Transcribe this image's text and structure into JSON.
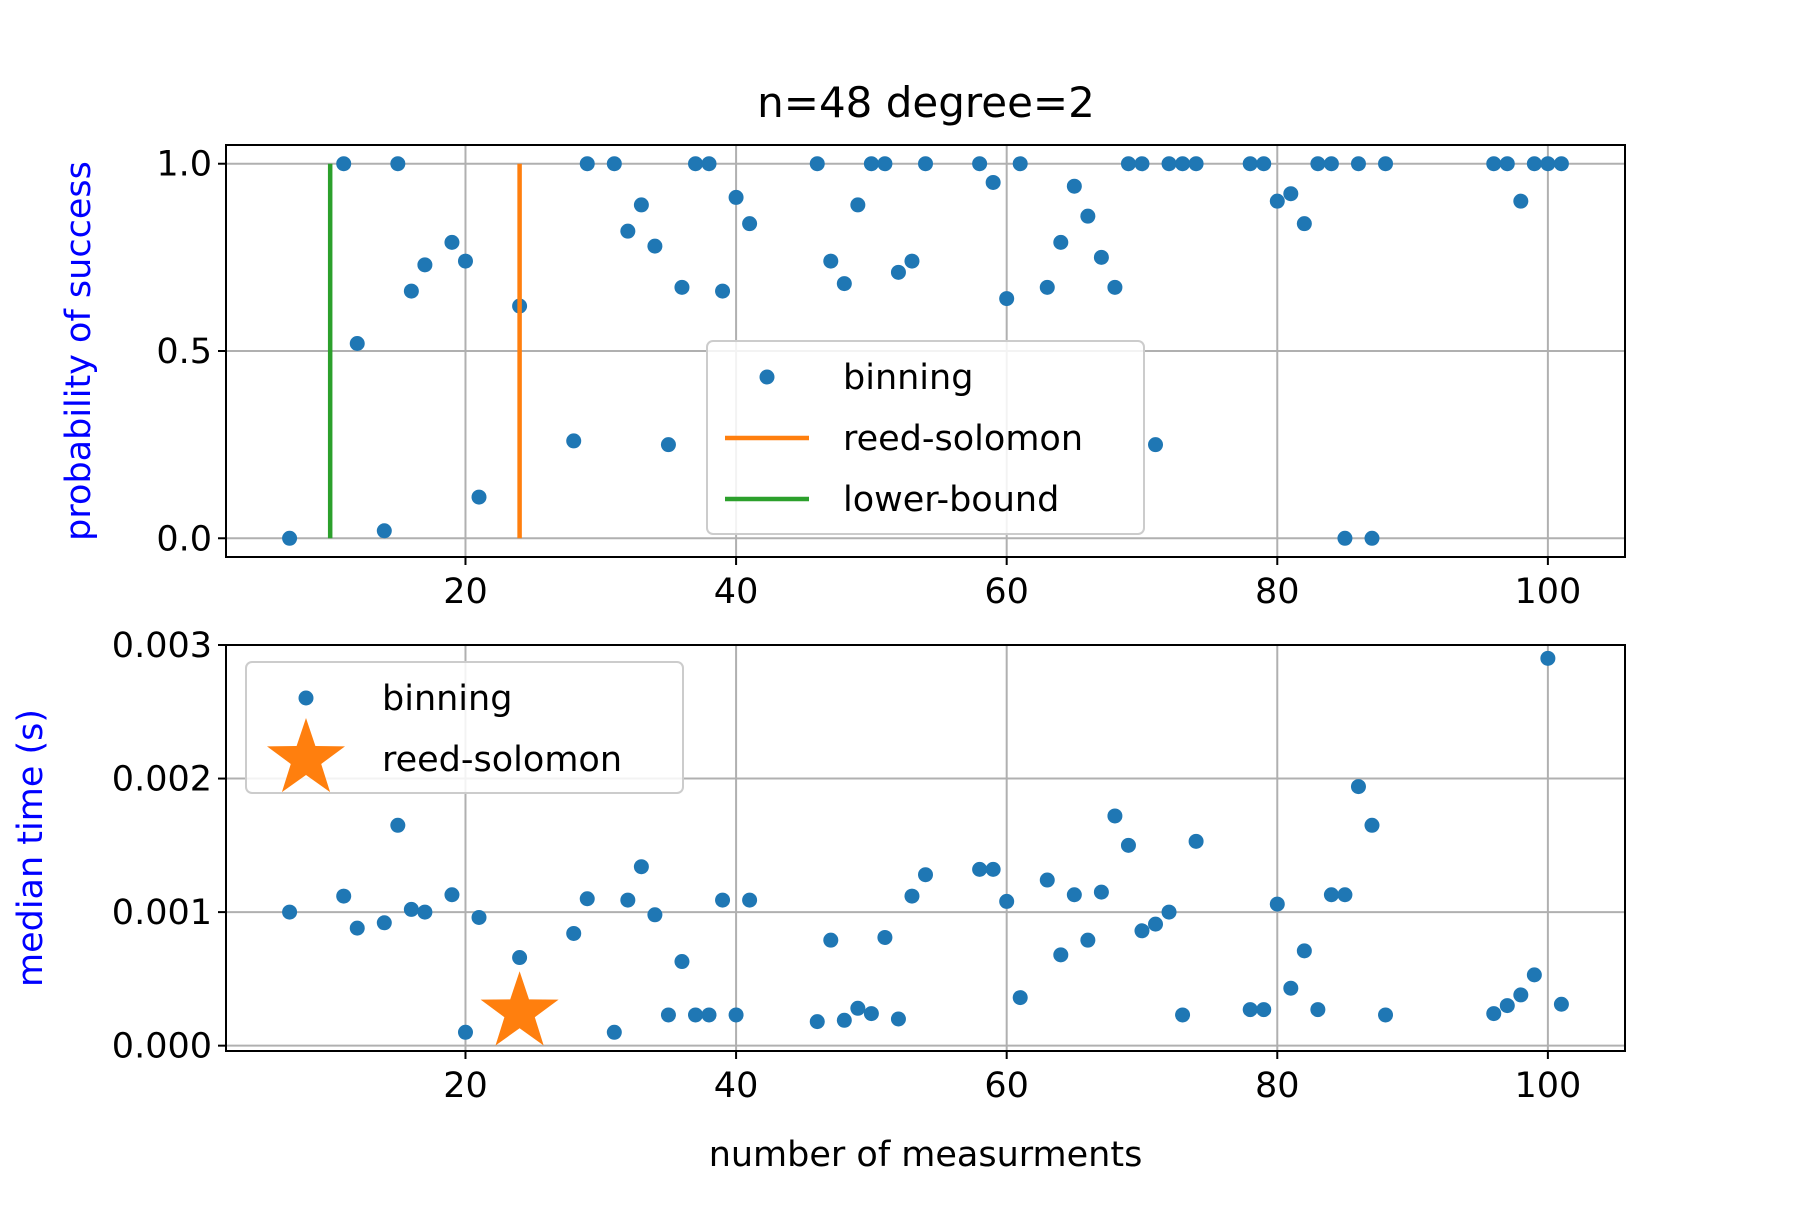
{
  "title": "n=48 degree=2",
  "colors": {
    "binning": "#1f77b4",
    "reed_solomon": "#ff7f0e",
    "lower_bound": "#2ca02c",
    "ylabel": "#0000ff",
    "grid": "#b0b0b0"
  },
  "chart_data": [
    {
      "type": "scatter",
      "title": "n=48 degree=2",
      "xlabel": "",
      "ylabel": "probability of success",
      "xlim": [
        2.3,
        105.7
      ],
      "ylim": [
        -0.05,
        1.05
      ],
      "xticks": [
        20,
        40,
        60,
        80,
        100
      ],
      "yticks": [
        0.0,
        0.5,
        1.0
      ],
      "ytick_labels": [
        "0.0",
        "0.5",
        "1.0"
      ],
      "grid": true,
      "legend_position": "lower-center",
      "series": [
        {
          "name": "binning",
          "kind": "points",
          "x": [
            7,
            11,
            12,
            14,
            15,
            16,
            17,
            19,
            20,
            21,
            24,
            28,
            29,
            31,
            32,
            33,
            34,
            35,
            36,
            37,
            38,
            39,
            40,
            41,
            46,
            47,
            48,
            49,
            50,
            51,
            52,
            53,
            54,
            58,
            59,
            60,
            61,
            63,
            64,
            65,
            66,
            67,
            68,
            69,
            70,
            71,
            72,
            73,
            74,
            78,
            79,
            80,
            81,
            82,
            83,
            84,
            85,
            86,
            87,
            88,
            96,
            97,
            98,
            99,
            100,
            101
          ],
          "y": [
            0.0,
            1.0,
            0.52,
            0.02,
            1.0,
            0.66,
            0.73,
            0.79,
            0.74,
            0.11,
            0.62,
            0.26,
            1.0,
            1.0,
            0.82,
            0.89,
            0.78,
            0.25,
            0.67,
            1.0,
            1.0,
            0.66,
            0.91,
            0.84,
            1.0,
            0.74,
            0.68,
            0.89,
            1.0,
            1.0,
            0.71,
            0.74,
            1.0,
            1.0,
            0.95,
            0.64,
            1.0,
            0.67,
            0.79,
            0.94,
            0.86,
            0.75,
            0.67,
            1.0,
            1.0,
            0.25,
            1.0,
            1.0,
            1.0,
            1.0,
            1.0,
            0.9,
            0.92,
            0.84,
            1.0,
            1.0,
            0.0,
            1.0,
            0.0,
            1.0,
            1.0,
            1.0,
            0.9,
            1.0,
            1.0,
            1.0
          ]
        },
        {
          "name": "reed-solomon",
          "kind": "vline",
          "x": 24,
          "y": [
            0,
            1
          ]
        },
        {
          "name": "lower-bound",
          "kind": "vline",
          "x": 10,
          "y": [
            0,
            1
          ]
        }
      ]
    },
    {
      "type": "scatter",
      "title": "",
      "xlabel": "number of measurments",
      "ylabel": "median time (s)",
      "xlim": [
        2.3,
        105.7
      ],
      "ylim": [
        -4e-05,
        0.003
      ],
      "xticks": [
        20,
        40,
        60,
        80,
        100
      ],
      "yticks": [
        0.0,
        0.001,
        0.002,
        0.003
      ],
      "ytick_labels": [
        "0.000",
        "0.001",
        "0.002",
        "0.003"
      ],
      "grid": true,
      "legend_position": "upper-left",
      "series": [
        {
          "name": "binning",
          "kind": "points",
          "x": [
            7,
            11,
            12,
            14,
            15,
            16,
            17,
            19,
            20,
            21,
            24,
            28,
            29,
            31,
            32,
            33,
            34,
            35,
            36,
            37,
            38,
            39,
            40,
            41,
            46,
            47,
            48,
            49,
            50,
            51,
            52,
            53,
            54,
            58,
            59,
            60,
            61,
            63,
            64,
            65,
            66,
            67,
            68,
            69,
            70,
            71,
            72,
            73,
            74,
            78,
            79,
            80,
            81,
            82,
            83,
            84,
            85,
            86,
            87,
            88,
            96,
            97,
            98,
            99,
            100,
            101
          ],
          "y": [
            0.001,
            0.00112,
            0.00088,
            0.00092,
            0.00165,
            0.00102,
            0.001,
            0.00113,
            0.0001,
            0.00096,
            0.00066,
            0.00084,
            0.0011,
            0.0001,
            0.00109,
            0.00134,
            0.00098,
            0.00023,
            0.00063,
            0.00023,
            0.00023,
            0.00109,
            0.00023,
            0.00109,
            0.00018,
            0.00079,
            0.00019,
            0.00028,
            0.00024,
            0.00081,
            0.0002,
            0.00112,
            0.00128,
            0.00132,
            0.00132,
            0.00108,
            0.00036,
            0.00124,
            0.00068,
            0.00113,
            0.00079,
            0.00115,
            0.00172,
            0.0015,
            0.00086,
            0.00091,
            0.001,
            0.00023,
            0.00153,
            0.00027,
            0.00027,
            0.00106,
            0.00043,
            0.00071,
            0.00027,
            0.00113,
            0.00113,
            0.00194,
            0.00165,
            0.00023,
            0.00024,
            0.0003,
            0.00038,
            0.00053,
            0.0029,
            0.00031
          ]
        },
        {
          "name": "reed-solomon",
          "kind": "star",
          "x": [
            24
          ],
          "y": [
            0.00025
          ]
        }
      ]
    }
  ]
}
